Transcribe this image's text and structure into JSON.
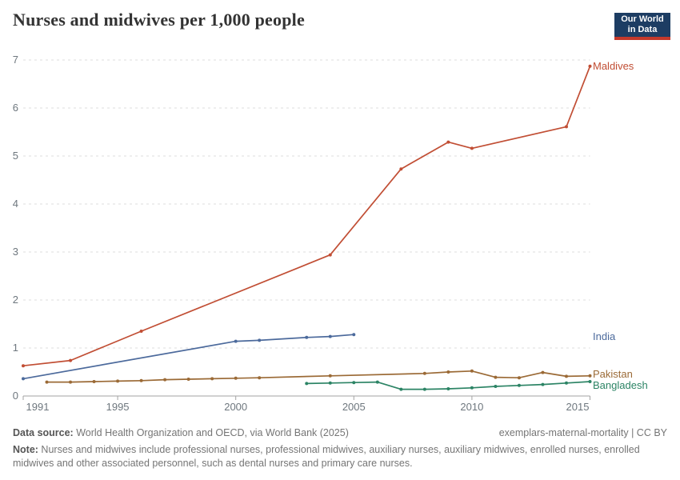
{
  "header": {
    "title": "Nurses and midwives per 1,000 people",
    "logo": {
      "line1": "Our World",
      "line2": "in Data",
      "bg_color": "#1D3D63",
      "accent_color": "#C4392B"
    }
  },
  "chart_data": {
    "type": "line",
    "title": "Nurses and midwives per 1,000 people",
    "xlabel": "",
    "ylabel": "",
    "xlim": [
      1991,
      2015
    ],
    "ylim": [
      0,
      7
    ],
    "grid": "horizontal-dashed",
    "legend_position": "right-edge-labels",
    "x_ticks": [
      1991,
      1995,
      2000,
      2005,
      2010,
      2015
    ],
    "y_ticks": [
      0,
      1,
      2,
      3,
      4,
      5,
      6,
      7
    ],
    "colors": {
      "grid": "#dcdcdc",
      "axis": "#a3a3a3",
      "tick_text": "#6e777e"
    },
    "series": [
      {
        "name": "Maldives",
        "color": "#C14E34",
        "points": [
          [
            1991,
            0.63
          ],
          [
            1993,
            0.74
          ],
          [
            1996,
            1.35
          ],
          [
            2004,
            2.94
          ],
          [
            2007,
            4.73
          ],
          [
            2009,
            5.29
          ],
          [
            2010,
            5.16
          ],
          [
            2014,
            5.61
          ],
          [
            2015,
            6.87
          ]
        ]
      },
      {
        "name": "India",
        "color": "#4C6A9C",
        "points": [
          [
            1991,
            0.36
          ],
          [
            2000,
            1.14
          ],
          [
            2001,
            1.16
          ],
          [
            2003,
            1.22
          ],
          [
            2004,
            1.24
          ],
          [
            2005,
            1.28
          ]
        ]
      },
      {
        "name": "Pakistan",
        "color": "#9B6A36",
        "points": [
          [
            1992,
            0.29
          ],
          [
            1993,
            0.29
          ],
          [
            1994,
            0.3
          ],
          [
            1995,
            0.31
          ],
          [
            1996,
            0.32
          ],
          [
            1997,
            0.34
          ],
          [
            1998,
            0.35
          ],
          [
            1999,
            0.36
          ],
          [
            2000,
            0.37
          ],
          [
            2001,
            0.38
          ],
          [
            2004,
            0.42
          ],
          [
            2008,
            0.47
          ],
          [
            2009,
            0.5
          ],
          [
            2010,
            0.52
          ],
          [
            2011,
            0.39
          ],
          [
            2012,
            0.38
          ],
          [
            2013,
            0.49
          ],
          [
            2014,
            0.41
          ],
          [
            2015,
            0.42
          ]
        ]
      },
      {
        "name": "Bangladesh",
        "color": "#2C8465",
        "points": [
          [
            2003,
            0.26
          ],
          [
            2004,
            0.27
          ],
          [
            2005,
            0.28
          ],
          [
            2006,
            0.29
          ],
          [
            2007,
            0.14
          ],
          [
            2008,
            0.14
          ],
          [
            2009,
            0.15
          ],
          [
            2010,
            0.17
          ],
          [
            2011,
            0.2
          ],
          [
            2012,
            0.22
          ],
          [
            2013,
            0.24
          ],
          [
            2014,
            0.27
          ],
          [
            2015,
            0.3
          ]
        ]
      }
    ]
  },
  "footer": {
    "data_source_label": "Data source:",
    "data_source_text": " World Health Organization and OECD, via World Bank (2025)",
    "slug": "exemplars-maternal-mortality",
    "separator": " | ",
    "license": "CC BY",
    "note_label": "Note:",
    "note_text": " Nurses and midwives include professional nurses, professional midwives, auxiliary nurses, auxiliary midwives, enrolled nurses, enrolled midwives and other associated personnel, such as dental nurses and primary care nurses."
  }
}
